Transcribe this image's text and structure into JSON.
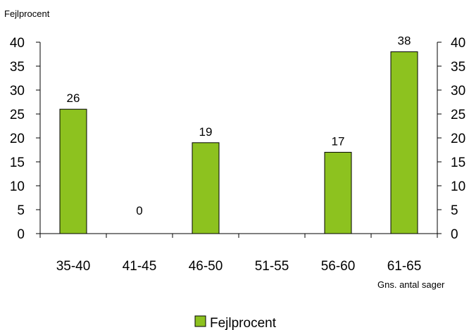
{
  "chart_data": {
    "type": "bar",
    "categories": [
      "35-40",
      "41-45",
      "46-50",
      "51-55",
      "56-60",
      "61-65"
    ],
    "series": [
      {
        "name": "Fejlprocent",
        "values": [
          26,
          0,
          19,
          null,
          17,
          38
        ],
        "data_labels": [
          "26",
          "0",
          "19",
          "",
          "17",
          "38"
        ]
      }
    ],
    "ylabel": "Fejlprocent",
    "xlabel": "Gns. antal sager",
    "ylim": [
      0,
      40
    ],
    "yticks": [
      0,
      5,
      10,
      15,
      20,
      25,
      30,
      35,
      40
    ],
    "secondary_y_axis": true,
    "grid": false,
    "legend_position": "bottom"
  },
  "colors": {
    "bar_fill": "#8dc21f",
    "bar_stroke": "#000000",
    "axis": "#000000"
  }
}
